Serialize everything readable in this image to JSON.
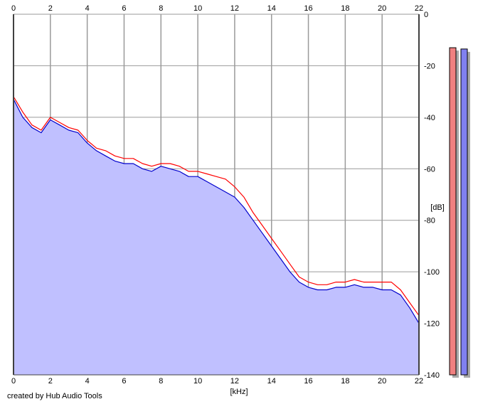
{
  "credit": "created by Hub Audio Tools",
  "colors": {
    "background": "#ffffff",
    "grid": "#9a9a9a",
    "fill": "#c0c0ff",
    "left_channel": "#ff0000",
    "right_channel": "#0000cc",
    "left_meter": "#f08080",
    "right_meter": "#8080f0",
    "meter_shadow": "#a8a8a8"
  },
  "chart_data": {
    "type": "line",
    "title": "",
    "xlabel": "[kHz]",
    "ylabel": "[dB]",
    "xlim": [
      0,
      22
    ],
    "ylim": [
      -140,
      0
    ],
    "x_ticks": [
      0,
      2,
      4,
      6,
      8,
      10,
      12,
      14,
      16,
      18,
      20,
      22
    ],
    "y_ticks": [
      0,
      -20,
      -40,
      -60,
      -80,
      -100,
      -120,
      -140
    ],
    "grid": true,
    "legend": "none",
    "series": [
      {
        "color": "#ff0000",
        "x": [
          0,
          0.5,
          1,
          1.5,
          2,
          2.5,
          3,
          3.5,
          4,
          4.5,
          5,
          5.5,
          6,
          6.5,
          7,
          7.5,
          8,
          8.5,
          9,
          9.5,
          10,
          10.5,
          11,
          11.5,
          12,
          12.5,
          13,
          13.5,
          14,
          14.5,
          15,
          15.5,
          16,
          16.5,
          17,
          17.5,
          18,
          18.5,
          19,
          19.5,
          20,
          20.5,
          21,
          21.5,
          22
        ],
        "values": [
          -32,
          -38,
          -43,
          -45,
          -40,
          -42,
          -44,
          -45,
          -49,
          -52,
          -53,
          -55,
          -56,
          -56,
          -58,
          -59,
          -58,
          -58,
          -59,
          -61,
          -61,
          -62,
          -63,
          -64,
          -67,
          -71,
          -77,
          -82,
          -87,
          -92,
          -97,
          -102,
          -104,
          -105,
          -105,
          -104,
          -104,
          -103,
          -104,
          -104,
          -104,
          -104,
          -107,
          -112,
          -117
        ]
      },
      {
        "color": "#0000cc",
        "x": [
          0,
          0.5,
          1,
          1.5,
          2,
          2.5,
          3,
          3.5,
          4,
          4.5,
          5,
          5.5,
          6,
          6.5,
          7,
          7.5,
          8,
          8.5,
          9,
          9.5,
          10,
          10.5,
          11,
          11.5,
          12,
          12.5,
          13,
          13.5,
          14,
          14.5,
          15,
          15.5,
          16,
          16.5,
          17,
          17.5,
          18,
          18.5,
          19,
          19.5,
          20,
          20.5,
          21,
          21.5,
          22
        ],
        "values": [
          -33,
          -40,
          -44,
          -46,
          -41,
          -43,
          -45,
          -46,
          -50,
          -53,
          -55,
          -57,
          -58,
          -58,
          -60,
          -61,
          -59,
          -60,
          -61,
          -63,
          -63,
          -65,
          -67,
          -69,
          -71,
          -75,
          -80,
          -85,
          -90,
          -95,
          -100,
          -104,
          -106,
          -107,
          -107,
          -106,
          -106,
          -105,
          -106,
          -106,
          -107,
          -107,
          -109,
          -114,
          -120
        ]
      }
    ],
    "meters": [
      {
        "color": "#f08080",
        "top_db": -13
      },
      {
        "color": "#8080f0",
        "top_db": -13.5
      }
    ]
  }
}
